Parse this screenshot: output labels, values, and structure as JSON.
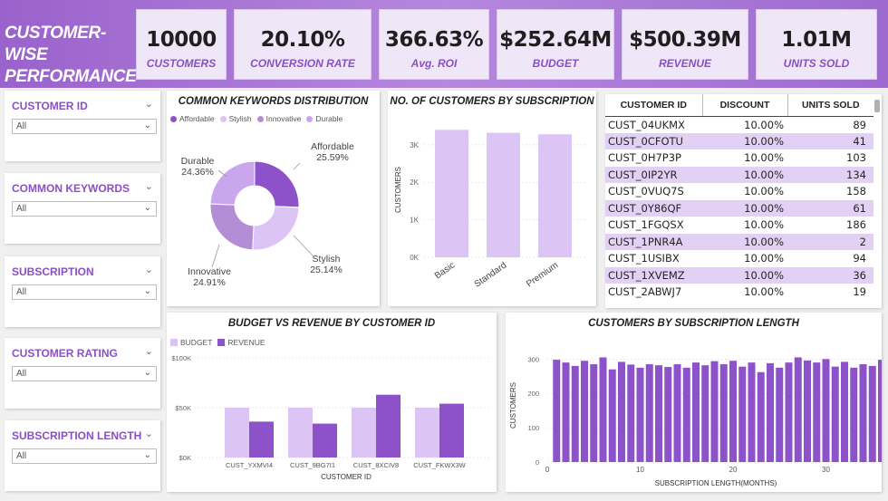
{
  "header": {
    "title_line1": "CUSTOMER-WISE",
    "title_line2": "PERFORMANCE",
    "kpis": [
      {
        "value": "10000",
        "label": "CUSTOMERS"
      },
      {
        "value": "20.10%",
        "label": "CONVERSION RATE"
      },
      {
        "value": "366.63%",
        "label": "Avg. ROI"
      },
      {
        "value": "$252.64M",
        "label": "BUDGET"
      },
      {
        "value": "$500.39M",
        "label": "REVENUE"
      },
      {
        "value": "1.01M",
        "label": "UNITS SOLD"
      }
    ]
  },
  "slicers": [
    {
      "title": "CUSTOMER ID",
      "value": "All"
    },
    {
      "title": "COMMON KEYWORDS",
      "value": "All"
    },
    {
      "title": "SUBSCRIPTION",
      "value": "All"
    },
    {
      "title": "CUSTOMER RATING",
      "value": "All"
    },
    {
      "title": "SUBSCRIPTION LENGTH",
      "value": "All"
    }
  ],
  "icons": {
    "chevron": "chevron-down-icon"
  },
  "colors": {
    "accent": "#8b4fc4",
    "dark_purple": "#8d52c9",
    "light_purple": "#dcc4f5",
    "mid_purple": "#b38ed6",
    "lavender": "#c9a6ee",
    "row_alt": "#e3d0f5"
  },
  "table": {
    "headers": [
      "CUSTOMER ID",
      "DISCOUNT",
      "UNITS SOLD"
    ],
    "rows": [
      [
        "CUST_04UKMX",
        "10.00%",
        "89"
      ],
      [
        "CUST_0CFOTU",
        "10.00%",
        "41"
      ],
      [
        "CUST_0H7P3P",
        "10.00%",
        "103"
      ],
      [
        "CUST_0IP2YR",
        "10.00%",
        "134"
      ],
      [
        "CUST_0VUQ7S",
        "10.00%",
        "158"
      ],
      [
        "CUST_0Y86QF",
        "10.00%",
        "61"
      ],
      [
        "CUST_1FGQSX",
        "10.00%",
        "186"
      ],
      [
        "CUST_1PNR4A",
        "10.00%",
        "2"
      ],
      [
        "CUST_1USIBX",
        "10.00%",
        "94"
      ],
      [
        "CUST_1XVEMZ",
        "10.00%",
        "36"
      ],
      [
        "CUST_2ABWJ7",
        "10.00%",
        "19"
      ]
    ]
  },
  "chart_data": [
    {
      "id": "keywords",
      "type": "pie",
      "title": "COMMON KEYWORDS DISTRIBUTION",
      "categories": [
        "Affordable",
        "Stylish",
        "Innovative",
        "Durable"
      ],
      "values": [
        25.59,
        25.14,
        24.91,
        24.36
      ],
      "labels": [
        "25.59%",
        "25.14%",
        "24.91%",
        "24.36%"
      ],
      "colors": [
        "#8d52c9",
        "#dcc4f5",
        "#b38ed6",
        "#c9a6ee"
      ],
      "legend": "top-left"
    },
    {
      "id": "subscription",
      "type": "bar",
      "title": "NO. OF CUSTOMERS BY SUBSCRIPTION",
      "categories": [
        "Basic",
        "Standard",
        "Premium"
      ],
      "values": [
        3400,
        3320,
        3280
      ],
      "ylabel": "CUSTOMERS",
      "yticks": [
        0,
        1000,
        2000,
        3000
      ],
      "ytick_labels": [
        "0K",
        "1K",
        "2K",
        "3K"
      ],
      "ylim": [
        0,
        3600
      ]
    },
    {
      "id": "budget_revenue",
      "type": "bar",
      "title": "BUDGET VS REVENUE BY CUSTOMER ID",
      "categories": [
        "CUST_YXMVI4",
        "CUST_9BG7I1",
        "CUST_8XCIV8",
        "CUST_FKWX3W"
      ],
      "series": [
        {
          "name": "BUDGET",
          "values": [
            50000,
            50000,
            50000,
            50000
          ],
          "color": "#dcc4f5"
        },
        {
          "name": "REVENUE",
          "values": [
            36000,
            34000,
            63000,
            54000
          ],
          "color": "#8d52c9"
        }
      ],
      "xlabel": "CUSTOMER ID",
      "yticks": [
        0,
        50000,
        100000
      ],
      "ytick_labels": [
        "$0K",
        "$50K",
        "$100K"
      ],
      "ylim": [
        0,
        100000
      ]
    },
    {
      "id": "sub_length",
      "type": "bar",
      "title": "CUSTOMERS BY SUBSCRIPTION LENGTH",
      "x": [
        1,
        2,
        3,
        4,
        5,
        6,
        7,
        8,
        9,
        10,
        11,
        12,
        13,
        14,
        15,
        16,
        17,
        18,
        19,
        20,
        21,
        22,
        23,
        24,
        25,
        26,
        27,
        28,
        29,
        30,
        31,
        32,
        33,
        34,
        35,
        36
      ],
      "values": [
        298,
        290,
        280,
        295,
        285,
        305,
        270,
        292,
        284,
        275,
        285,
        282,
        277,
        285,
        275,
        290,
        282,
        294,
        285,
        295,
        278,
        290,
        262,
        288,
        275,
        290,
        305,
        296,
        290,
        300,
        278,
        292,
        275,
        285,
        280,
        298
      ],
      "xlabel": "SUBSCRIPTION LENGTH(MONTHS)",
      "ylabel": "CUSTOMERS",
      "yticks": [
        0,
        100,
        200,
        300
      ],
      "xticks": [
        0,
        10,
        20,
        30
      ],
      "ylim": [
        0,
        330
      ]
    }
  ]
}
